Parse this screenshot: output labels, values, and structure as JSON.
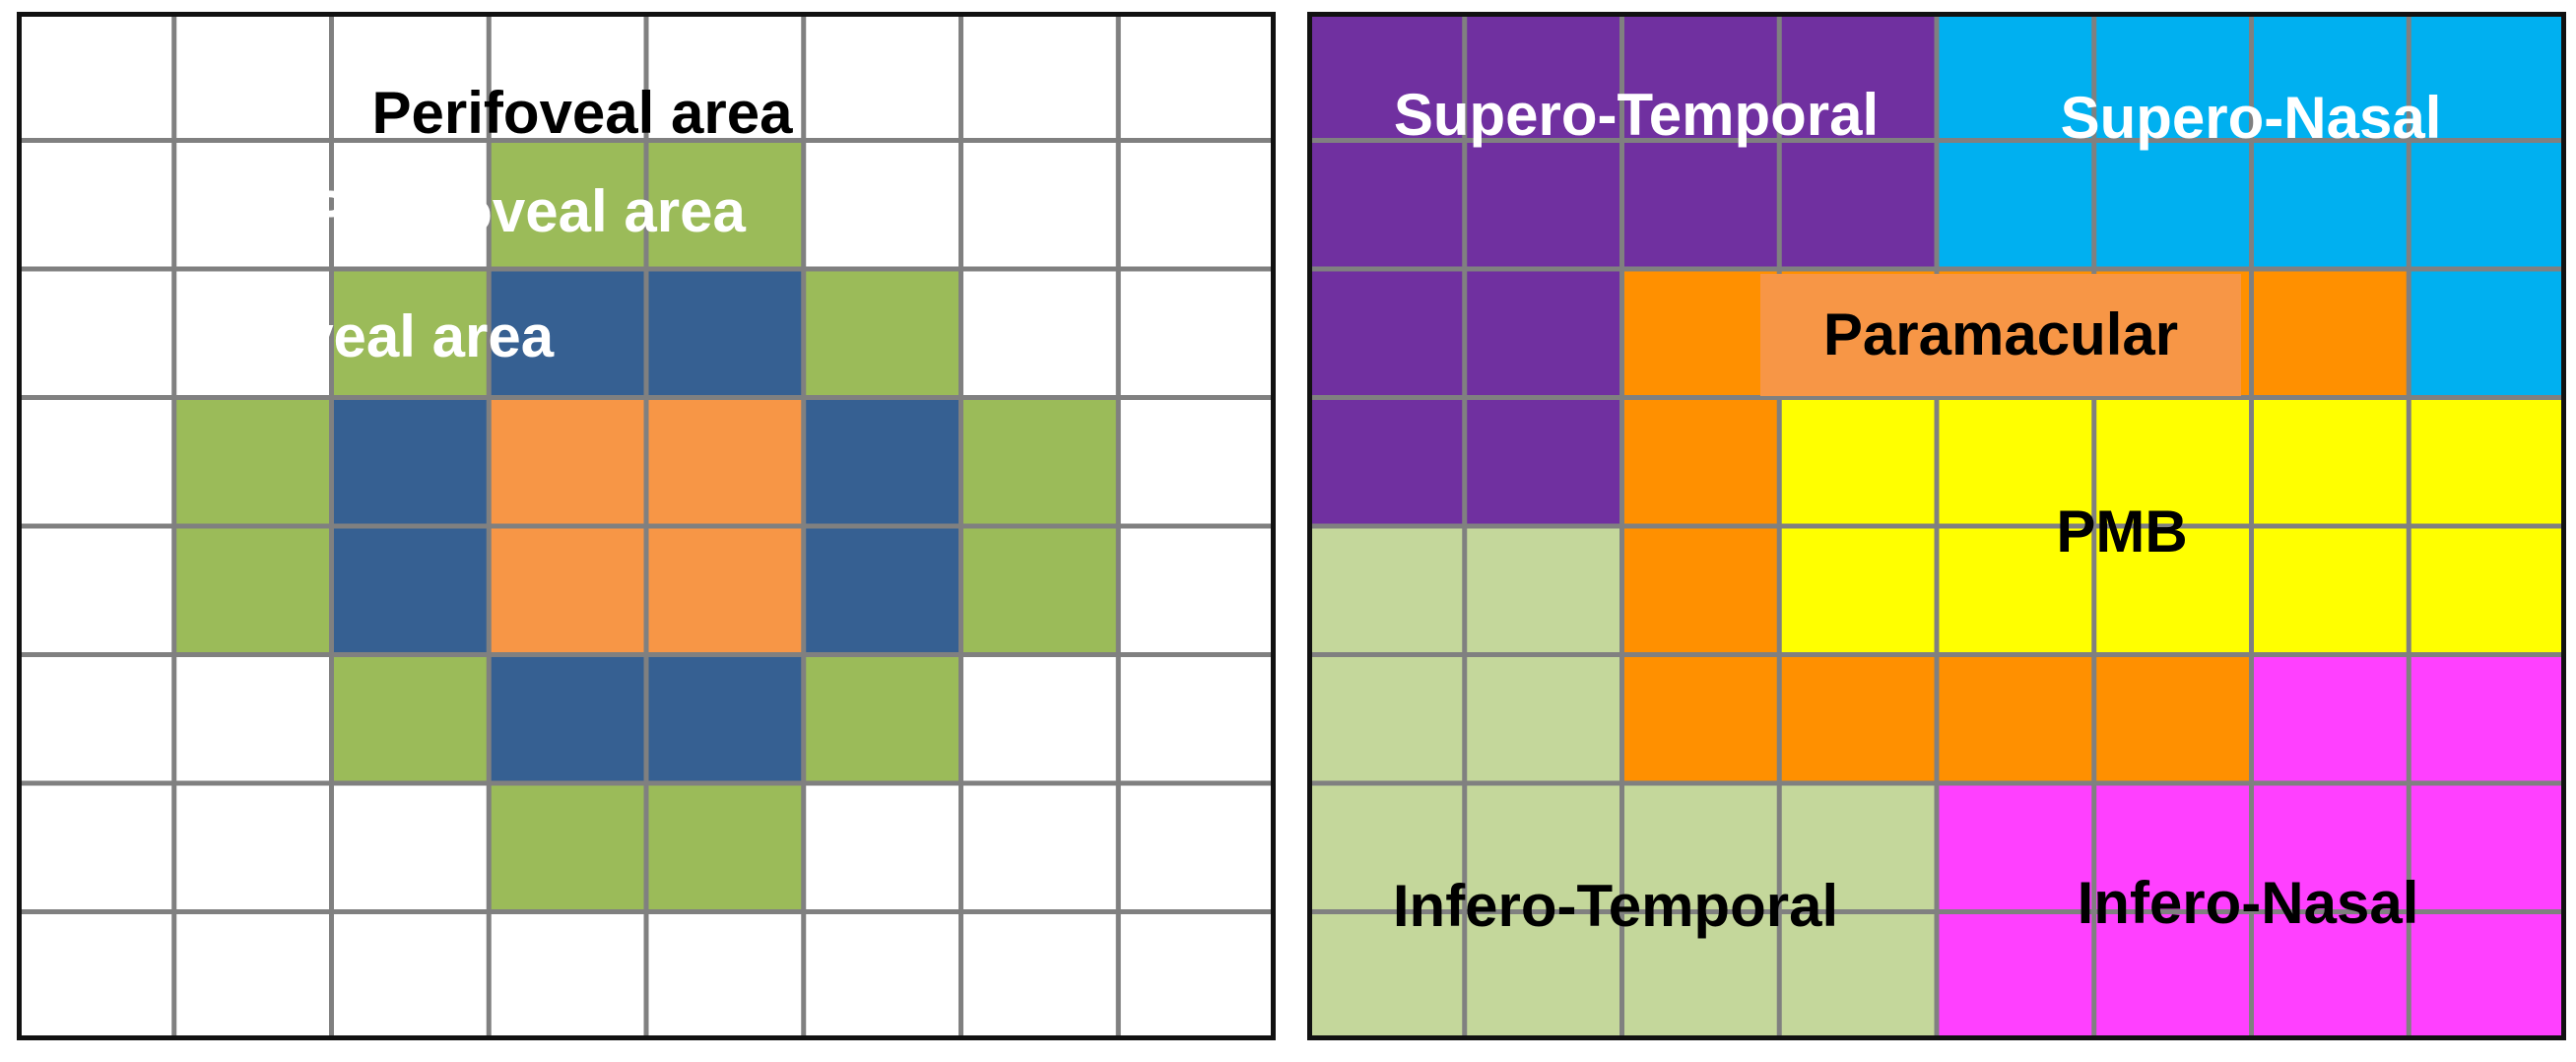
{
  "colors": {
    "white": "#ffffff",
    "green": "#9bbb59",
    "blue": "#366092",
    "orange_light": "#f79646",
    "purple": "#7030a0",
    "cyan": "#00b0f0",
    "orange": "#ff9000",
    "yellow": "#ffff00",
    "light_green": "#c4d79b",
    "magenta": "#ff40ff",
    "gridline": "#808080",
    "frame": "#111111"
  },
  "left_diagram": {
    "labels": {
      "perifoveal": "Perifoveal area",
      "parafoveal": "Parafoveal area",
      "foveal": "Foveal area"
    },
    "cells": [
      [
        "white",
        "white",
        "white",
        "white",
        "white",
        "white",
        "white",
        "white"
      ],
      [
        "white",
        "white",
        "white",
        "green",
        "green",
        "white",
        "white",
        "white"
      ],
      [
        "white",
        "white",
        "green",
        "blue",
        "blue",
        "green",
        "white",
        "white"
      ],
      [
        "white",
        "green",
        "blue",
        "orange_light",
        "orange_light",
        "blue",
        "green",
        "white"
      ],
      [
        "white",
        "green",
        "blue",
        "orange_light",
        "orange_light",
        "blue",
        "green",
        "white"
      ],
      [
        "white",
        "white",
        "green",
        "blue",
        "blue",
        "green",
        "white",
        "white"
      ],
      [
        "white",
        "white",
        "white",
        "green",
        "green",
        "white",
        "white",
        "white"
      ],
      [
        "white",
        "white",
        "white",
        "white",
        "white",
        "white",
        "white",
        "white"
      ]
    ]
  },
  "right_diagram": {
    "labels": {
      "supero_temporal": "Supero-Temporal",
      "supero_nasal": "Supero-Nasal",
      "paramacular": "Paramacular",
      "pmb": "PMB",
      "infero_temporal": "Infero-Temporal",
      "infero_nasal": "Infero-Nasal"
    },
    "cells": [
      [
        "purple",
        "purple",
        "purple",
        "purple",
        "cyan",
        "cyan",
        "cyan",
        "cyan"
      ],
      [
        "purple",
        "purple",
        "purple",
        "purple",
        "cyan",
        "cyan",
        "cyan",
        "cyan"
      ],
      [
        "purple",
        "purple",
        "orange",
        "orange",
        "orange",
        "orange",
        "orange",
        "cyan"
      ],
      [
        "purple",
        "purple",
        "orange",
        "yellow",
        "yellow",
        "yellow",
        "yellow",
        "yellow"
      ],
      [
        "light_green",
        "light_green",
        "orange",
        "yellow",
        "yellow",
        "yellow",
        "yellow",
        "yellow"
      ],
      [
        "light_green",
        "light_green",
        "orange",
        "orange",
        "orange",
        "orange",
        "magenta",
        "magenta"
      ],
      [
        "light_green",
        "light_green",
        "light_green",
        "light_green",
        "magenta",
        "magenta",
        "magenta",
        "magenta"
      ],
      [
        "light_green",
        "light_green",
        "light_green",
        "light_green",
        "magenta",
        "magenta",
        "magenta",
        "magenta"
      ]
    ]
  }
}
